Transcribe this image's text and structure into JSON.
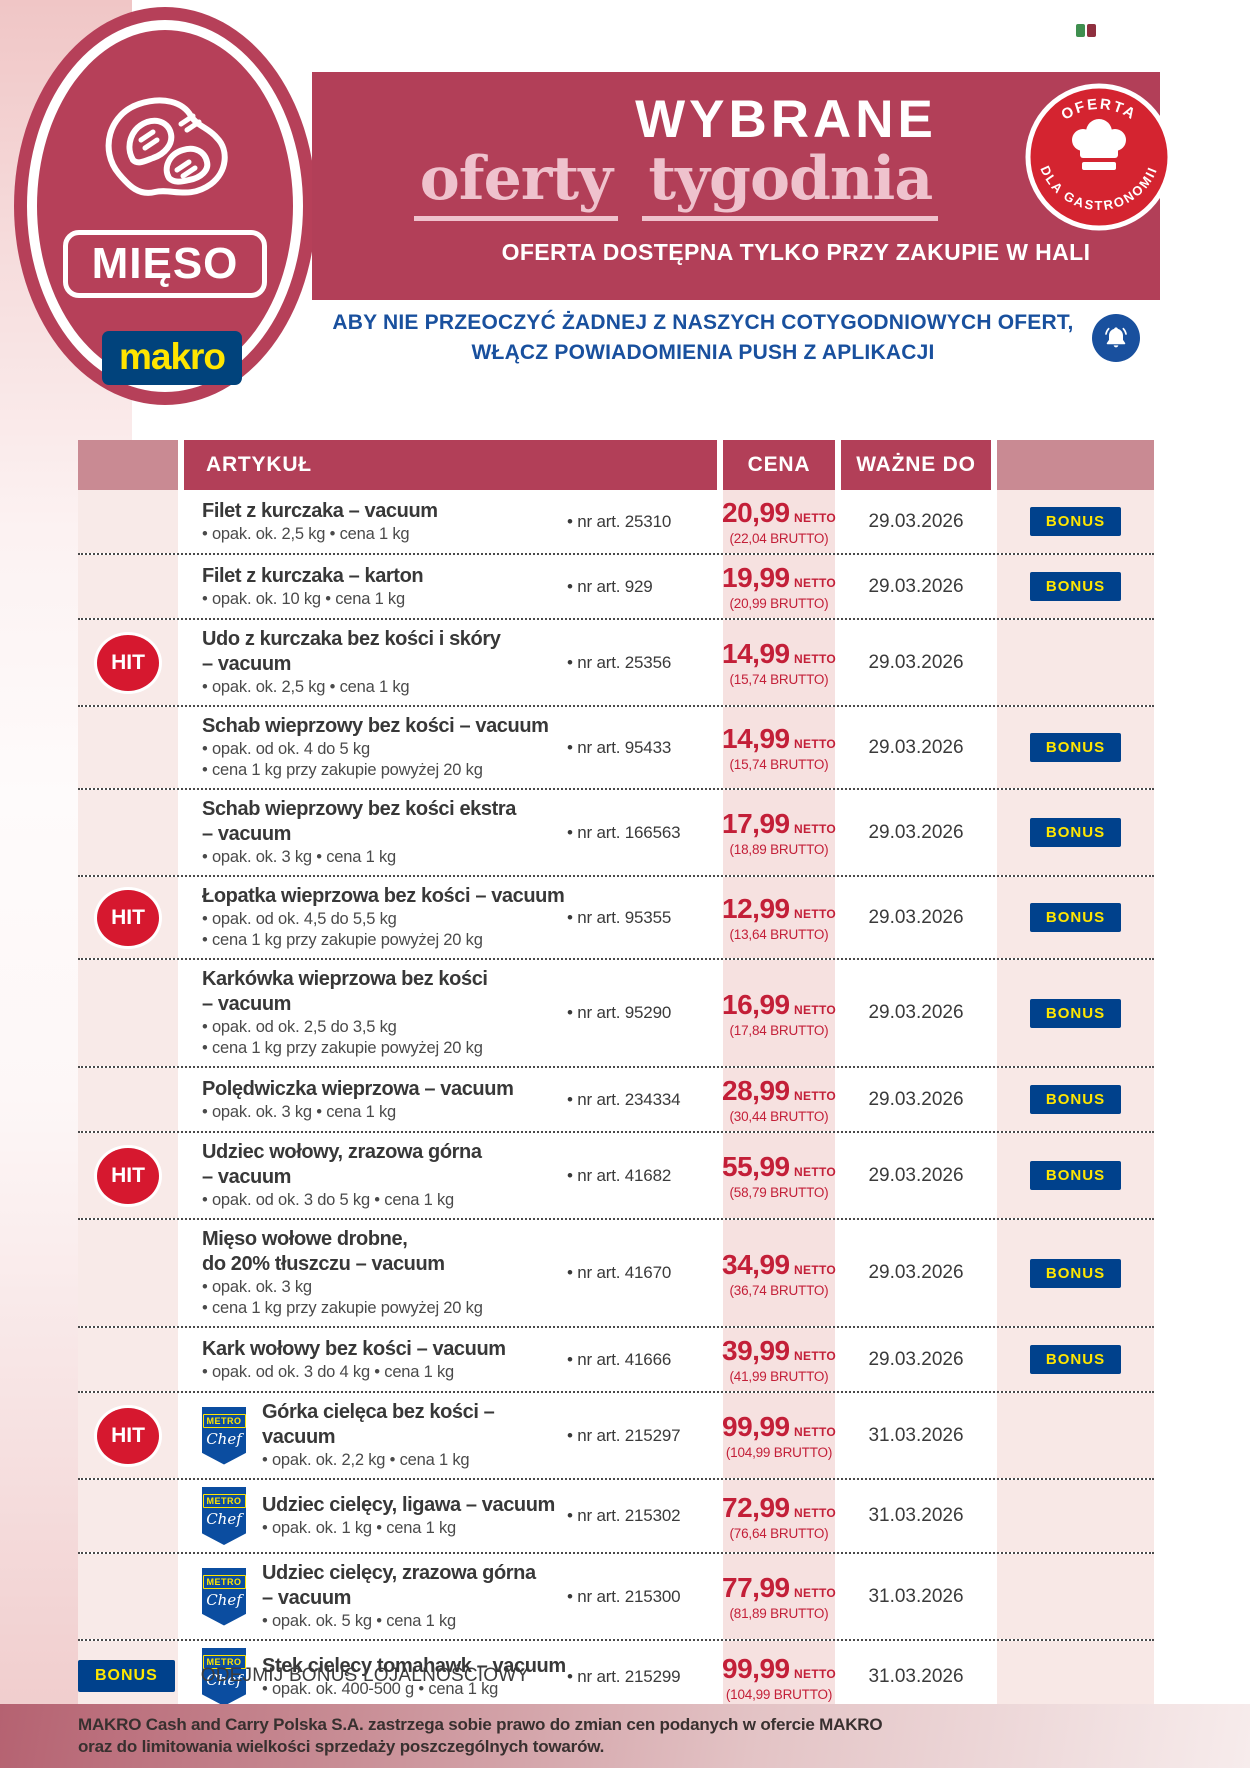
{
  "category": {
    "label": "MIĘSO"
  },
  "brand": {
    "name": "makro"
  },
  "banner": {
    "title": "WYBRANE",
    "subtitle_word1": "oferty",
    "subtitle_word2": "tygodnia",
    "availability": "OFERTA DOSTĘPNA TYLKO PRZY ZAKUPIE W HALI"
  },
  "gastro_badge": {
    "arc_top": "OFERTA",
    "arc_bottom": "DLA GASTRONOMII"
  },
  "push_note": {
    "line1": "ABY NIE PRZEOCZYĆ ŻADNEJ Z NASZYCH COTYGODNIOWYCH OFERT,",
    "line2": "WŁĄCZ POWIADOMIENIA PUSH Z APLIKACJI"
  },
  "table": {
    "headers": {
      "article": "ARTYKUŁ",
      "price": "CENA",
      "valid_to": "WAŻNE DO"
    },
    "labels": {
      "netto": "NETTO",
      "hit": "HIT",
      "bonus": "BONUS",
      "metro": "METRO",
      "chef": "Chef"
    },
    "rows": [
      {
        "hit": false,
        "chef": false,
        "name1": "Filet z kurczaka – vacuum",
        "name2": "",
        "details": [
          "• opak. ok. 2,5 kg • cena 1 kg"
        ],
        "art": "• nr art. 25310",
        "price": "20,99",
        "brutto": "(22,04 BRUTTO)",
        "valid": "29.03.2026",
        "bonus": true
      },
      {
        "hit": false,
        "chef": false,
        "name1": "Filet z kurczaka – karton",
        "name2": "",
        "details": [
          "• opak. ok. 10 kg • cena 1 kg"
        ],
        "art": "• nr art. 929",
        "price": "19,99",
        "brutto": "(20,99 BRUTTO)",
        "valid": "29.03.2026",
        "bonus": true
      },
      {
        "hit": true,
        "chef": false,
        "name1": "Udo z kurczaka bez kości i skóry",
        "name2": "– vacuum",
        "details": [
          "• opak. ok. 2,5 kg • cena 1 kg"
        ],
        "art": "• nr art. 25356",
        "price": "14,99",
        "brutto": "(15,74 BRUTTO)",
        "valid": "29.03.2026",
        "bonus": false
      },
      {
        "hit": false,
        "chef": false,
        "name1": "Schab wieprzowy bez kości – vacuum",
        "name2": "",
        "details": [
          "• opak. od ok. 4 do 5 kg",
          "• cena 1 kg przy zakupie powyżej 20 kg"
        ],
        "art": "• nr art. 95433",
        "price": "14,99",
        "brutto": "(15,74 BRUTTO)",
        "valid": "29.03.2026",
        "bonus": true
      },
      {
        "hit": false,
        "chef": false,
        "name1": "Schab wieprzowy bez kości ekstra",
        "name2": "– vacuum",
        "details": [
          "• opak. ok. 3 kg • cena 1 kg"
        ],
        "art": "• nr art. 166563",
        "price": "17,99",
        "brutto": "(18,89 BRUTTO)",
        "valid": "29.03.2026",
        "bonus": true
      },
      {
        "hit": true,
        "chef": false,
        "name1": "Łopatka wieprzowa bez kości – vacuum",
        "name2": "",
        "details": [
          "• opak. od ok. 4,5 do 5,5 kg",
          "• cena 1 kg przy zakupie powyżej 20 kg"
        ],
        "art": "• nr art. 95355",
        "price": "12,99",
        "brutto": "(13,64 BRUTTO)",
        "valid": "29.03.2026",
        "bonus": true
      },
      {
        "hit": false,
        "chef": false,
        "name1": "Karkówka wieprzowa bez kości",
        "name2": "– vacuum",
        "details": [
          "• opak. od ok. 2,5 do 3,5 kg",
          "• cena 1 kg przy zakupie powyżej 20 kg"
        ],
        "art": "• nr art. 95290",
        "price": "16,99",
        "brutto": "(17,84 BRUTTO)",
        "valid": "29.03.2026",
        "bonus": true
      },
      {
        "hit": false,
        "chef": false,
        "name1": "Polędwiczka wieprzowa – vacuum",
        "name2": "",
        "details": [
          "• opak. ok. 3 kg • cena 1 kg"
        ],
        "art": "• nr art. 234334",
        "price": "28,99",
        "brutto": "(30,44 BRUTTO)",
        "valid": "29.03.2026",
        "bonus": true
      },
      {
        "hit": true,
        "chef": false,
        "name1": "Udziec wołowy, zrazowa górna",
        "name2": "– vacuum",
        "details": [
          "• opak. od ok. 3 do 5 kg • cena 1 kg"
        ],
        "art": "• nr art. 41682",
        "price": "55,99",
        "brutto": "(58,79 BRUTTO)",
        "valid": "29.03.2026",
        "bonus": true
      },
      {
        "hit": false,
        "chef": false,
        "name1": "Mięso wołowe drobne,",
        "name2": "do 20% tłuszczu – vacuum",
        "details": [
          "• opak. ok. 3 kg",
          "• cena 1 kg przy zakupie powyżej 20 kg"
        ],
        "art": "• nr art. 41670",
        "price": "34,99",
        "brutto": "(36,74 BRUTTO)",
        "valid": "29.03.2026",
        "bonus": true
      },
      {
        "hit": false,
        "chef": false,
        "name1": "Kark wołowy bez kości – vacuum",
        "name2": "",
        "details": [
          "• opak. od ok. 3 do 4 kg • cena 1 kg"
        ],
        "art": "• nr art. 41666",
        "price": "39,99",
        "brutto": "(41,99 BRUTTO)",
        "valid": "29.03.2026",
        "bonus": true
      },
      {
        "hit": true,
        "chef": true,
        "name1": "Górka cielęca bez kości – vacuum",
        "name2": "",
        "details": [
          "• opak. ok. 2,2 kg • cena 1 kg"
        ],
        "art": "• nr art. 215297",
        "price": "99,99",
        "brutto": "(104,99 BRUTTO)",
        "valid": "31.03.2026",
        "bonus": false
      },
      {
        "hit": false,
        "chef": true,
        "name1": "Udziec cielęcy, ligawa – vacuum",
        "name2": "",
        "details": [
          "• opak. ok. 1 kg • cena 1 kg"
        ],
        "art": "• nr art. 215302",
        "price": "72,99",
        "brutto": "(76,64 BRUTTO)",
        "valid": "31.03.2026",
        "bonus": false
      },
      {
        "hit": false,
        "chef": true,
        "name1": "Udziec cielęcy, zrazowa górna",
        "name2": "– vacuum",
        "details": [
          "• opak. ok. 5 kg • cena 1 kg"
        ],
        "art": "• nr art. 215300",
        "price": "77,99",
        "brutto": "(81,89 BRUTTO)",
        "valid": "31.03.2026",
        "bonus": false
      },
      {
        "hit": false,
        "chef": true,
        "name1": "Stek cielęcy tomahawk – vacuum",
        "name2": "",
        "details": [
          "• opak. ok. 400-500 g • cena 1 kg"
        ],
        "art": "• nr art. 215299",
        "price": "99,99",
        "brutto": "(104,99 BRUTTO)",
        "valid": "31.03.2026",
        "bonus": false
      }
    ]
  },
  "legend": {
    "bonus_badge": "BONUS",
    "text": "ODEJMIJ BONUS LOJALNOŚCIOWY"
  },
  "footer": {
    "line1": "MAKRO Cash and Carry Polska S.A. zastrzega sobie prawo do zmian cen podanych w ofercie MAKRO",
    "line2": "oraz do limitowania wielkości sprzedaży poszczególnych towarów."
  },
  "colors": {
    "accent_red": "#b23f58",
    "header_light": "#c98a93",
    "price_red": "#c31f38",
    "hit_red": "#d6182f",
    "gastro_red": "#d42430",
    "bonus_blue": "#00418c",
    "bonus_yellow": "#ffe600",
    "makro_blue": "#01437c",
    "makro_yellow": "#ffe500",
    "note_blue": "#19509e"
  }
}
